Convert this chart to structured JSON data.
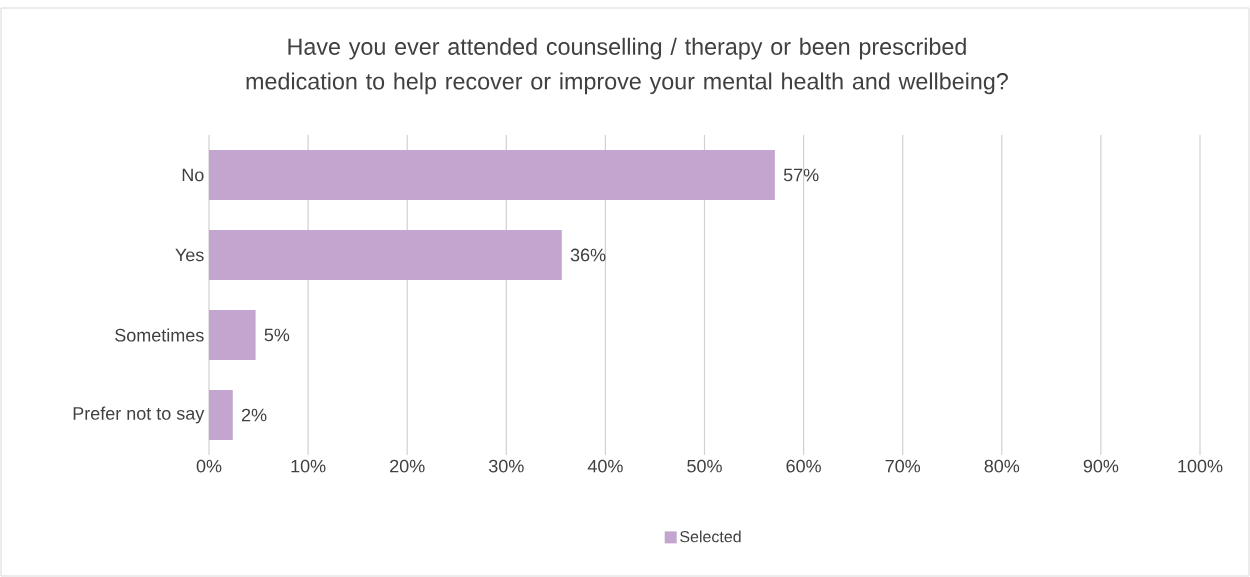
{
  "chart_data": {
    "type": "bar",
    "orientation": "horizontal",
    "title": "Have you ever attended counselling / therapy or been prescribed medication to help recover or improve your mental health and wellbeing?",
    "categories": [
      "No",
      "Yes",
      "Sometimes",
      "Prefer not to say"
    ],
    "series": [
      {
        "name": "Selected",
        "color": "#c3a5cf",
        "values": [
          57.1,
          35.6,
          4.7,
          2.4
        ]
      }
    ],
    "value_labels": [
      "57%",
      "36%",
      "5%",
      "2%"
    ],
    "xlim": [
      0,
      100
    ],
    "xticks": [
      {
        "value": 0,
        "label": "0%"
      },
      {
        "value": 10,
        "label": "10%"
      },
      {
        "value": 20,
        "label": "20%"
      },
      {
        "value": 30,
        "label": "30%"
      },
      {
        "value": 40,
        "label": "40%"
      },
      {
        "value": 50,
        "label": "50%"
      },
      {
        "value": 60,
        "label": "60%"
      },
      {
        "value": 70,
        "label": "70%"
      },
      {
        "value": 80,
        "label": "80%"
      },
      {
        "value": 90,
        "label": "90%"
      },
      {
        "value": 100,
        "label": "100%"
      }
    ],
    "grid": "x",
    "legend": "bottom"
  }
}
